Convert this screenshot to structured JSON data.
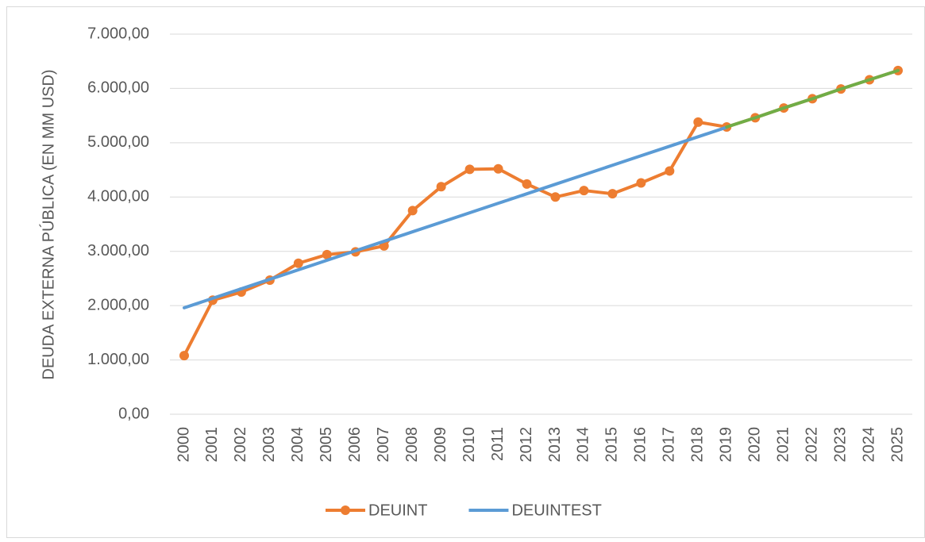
{
  "chart_data": {
    "type": "line",
    "y_label": "DEUDA EXTERNA PÚBLICA (EN MM USD)",
    "categories": [
      "2000",
      "2001",
      "2002",
      "2003",
      "2004",
      "2005",
      "2006",
      "2007",
      "2008",
      "2009",
      "2010",
      "2011",
      "2012",
      "2013",
      "2014",
      "2015",
      "2016",
      "2017",
      "2018",
      "2019",
      "2020",
      "2021",
      "2022",
      "2023",
      "2024",
      "2025"
    ],
    "series": [
      {
        "name": "DEUINT",
        "color": "#ed7d31",
        "markers": true,
        "values": [
          1080,
          2100,
          2250,
          2470,
          2780,
          2940,
          2990,
          3100,
          3750,
          4190,
          4510,
          4520,
          4240,
          4000,
          4120,
          4060,
          4260,
          4480,
          5380,
          5290,
          5460,
          5640,
          5810,
          5990,
          6160,
          6330
        ]
      },
      {
        "name": "DEUINTEST",
        "color": "#5b9bd5",
        "markers": false,
        "values": [
          1960,
          2135,
          2310,
          2485,
          2660,
          2835,
          3010,
          3185,
          3360,
          3535,
          3710,
          3885,
          4060,
          4235,
          4410,
          4585,
          4760,
          4935,
          5110,
          5285,
          null,
          null,
          null,
          null,
          null,
          null
        ]
      },
      {
        "color": "#70ad47",
        "markers": false,
        "values": [
          null,
          null,
          null,
          null,
          null,
          null,
          null,
          null,
          null,
          null,
          null,
          null,
          null,
          null,
          null,
          null,
          null,
          null,
          null,
          5290,
          5460,
          5640,
          5810,
          5990,
          6160,
          6330
        ]
      }
    ],
    "ylim": [
      0,
      7000
    ],
    "yticks": [
      {
        "value": 0,
        "label": "0,00"
      },
      {
        "value": 1000,
        "label": "1.000,00"
      },
      {
        "value": 2000,
        "label": "2.000,00"
      },
      {
        "value": 3000,
        "label": "3.000,00"
      },
      {
        "value": 4000,
        "label": "4.000,00"
      },
      {
        "value": 5000,
        "label": "5.000,00"
      },
      {
        "value": 6000,
        "label": "6.000,00"
      },
      {
        "value": 7000,
        "label": "7.000,00"
      }
    ],
    "grid": true,
    "legend": "bottom"
  }
}
